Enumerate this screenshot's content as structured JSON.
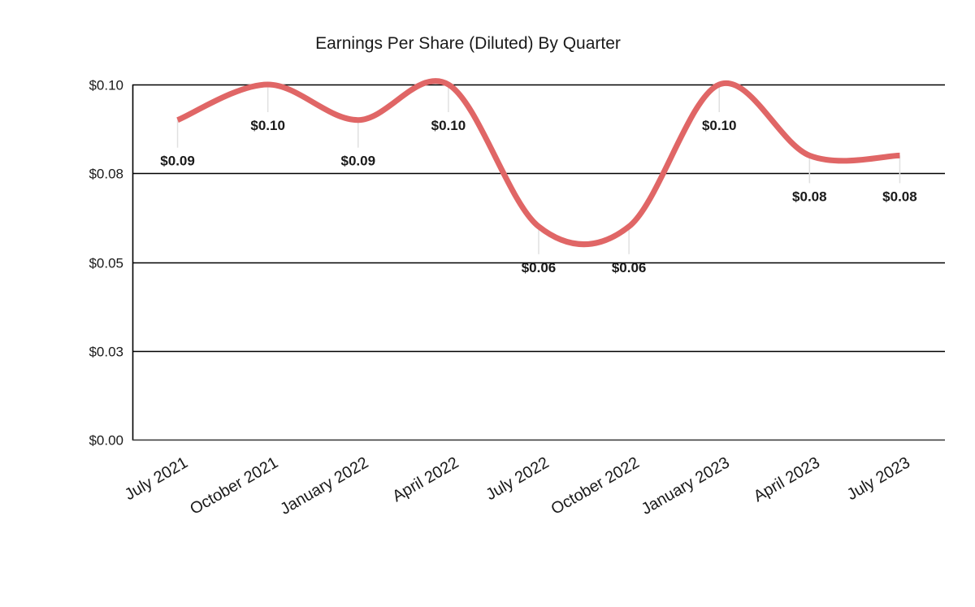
{
  "chart_data": {
    "type": "line",
    "title": "Earnings Per Share (Diluted) By Quarter",
    "xlabel": "",
    "ylabel": "",
    "categories": [
      "July 2021",
      "October 2021",
      "January 2022",
      "April 2022",
      "July 2022",
      "October 2022",
      "January 2023",
      "April 2023",
      "July 2023"
    ],
    "series": [
      {
        "name": "Earnings Per Share (Diluted)",
        "values": [
          0.09,
          0.1,
          0.09,
          0.1,
          0.06,
          0.06,
          0.1,
          0.08,
          0.08
        ],
        "data_labels": [
          "$0.09",
          "$0.10",
          "$0.09",
          "$0.10",
          "$0.06",
          "$0.06",
          "$0.10",
          "$0.08",
          "$0.08"
        ],
        "color": "#e06666",
        "smooth": true
      }
    ],
    "ylim": [
      0,
      0.1
    ],
    "yticks": [
      0,
      0.025,
      0.05,
      0.075,
      0.1
    ],
    "ytick_labels": [
      "$0.00",
      "$0.03",
      "$0.05",
      "$0.08",
      "$0.10"
    ],
    "grid": true,
    "legend": "none"
  },
  "colors": {
    "line": "#e06666",
    "grid": "#000000",
    "axis": "#000000",
    "text": "#1a1a1a",
    "leader": "#e0e0e0"
  }
}
